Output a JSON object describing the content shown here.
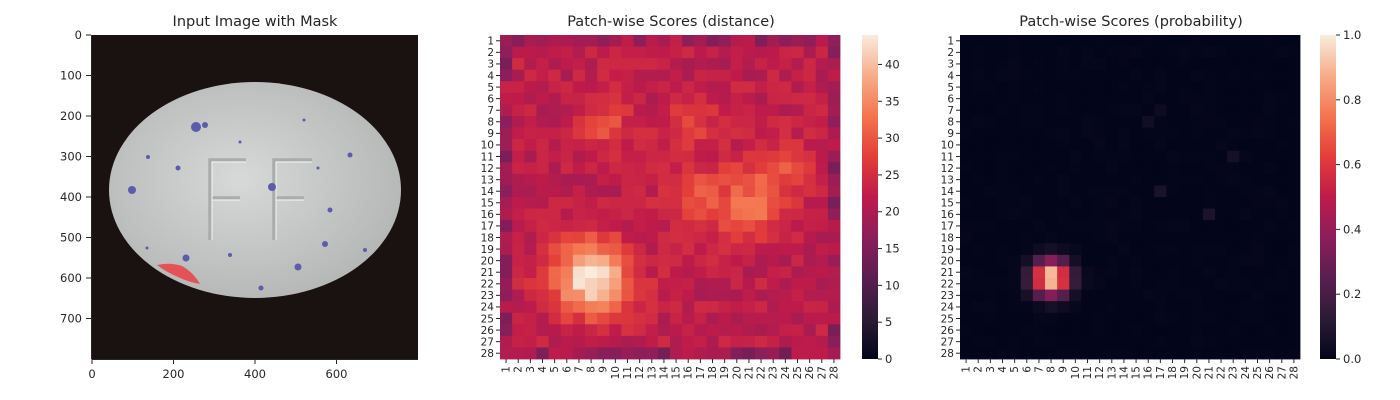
{
  "chart_data": [
    {
      "type": "image",
      "title": "Input Image with Mask",
      "xticks": [
        "0",
        "200",
        "400",
        "600"
      ],
      "yticks": [
        "0",
        "100",
        "200",
        "300",
        "400",
        "500",
        "600",
        "700"
      ],
      "xlim": [
        0,
        800
      ],
      "ylim": [
        0,
        800
      ],
      "objects": {
        "pill": {
          "center": [
            400,
            380
          ],
          "rx": 360,
          "ry": 268,
          "color": "#c9ccca"
        },
        "embossed_text": "FF",
        "mask_region": {
          "x_range": [
            160,
            270
          ],
          "y_range": [
            550,
            620
          ],
          "color": "#e8474b"
        }
      },
      "colors": {
        "background": "#1a1210",
        "pill": "#c9ccca",
        "mask": "#e8474b",
        "specks": "#5d5caa"
      }
    },
    {
      "type": "heatmap",
      "title": "Patch-wise Scores (distance)",
      "rows": 28,
      "cols": 28,
      "xticks": [
        "1",
        "2",
        "3",
        "4",
        "5",
        "6",
        "7",
        "8",
        "9",
        "10",
        "11",
        "12",
        "13",
        "14",
        "15",
        "16",
        "17",
        "18",
        "19",
        "20",
        "21",
        "22",
        "23",
        "24",
        "25",
        "26",
        "27",
        "28"
      ],
      "yticks": [
        "1",
        "2",
        "3",
        "4",
        "5",
        "6",
        "7",
        "8",
        "9",
        "10",
        "11",
        "12",
        "13",
        "14",
        "15",
        "16",
        "17",
        "18",
        "19",
        "20",
        "21",
        "22",
        "23",
        "24",
        "25",
        "26",
        "27",
        "28"
      ],
      "colorbar": {
        "ticks": [
          "0",
          "5",
          "10",
          "15",
          "20",
          "25",
          "30",
          "35",
          "40"
        ],
        "vmin": 0,
        "vmax": 44,
        "colormap": "rocket"
      },
      "base_value": 22,
      "hotspots": [
        {
          "row": 21.5,
          "col": 8,
          "peak": 44,
          "spread": 2.2
        },
        {
          "row": 14.5,
          "col": 17,
          "peak": 29,
          "spread": 2.0
        },
        {
          "row": 12.5,
          "col": 23,
          "peak": 30,
          "spread": 2.0
        },
        {
          "row": 16,
          "col": 21,
          "peak": 31,
          "spread": 1.6
        },
        {
          "row": 8,
          "col": 9,
          "peak": 29,
          "spread": 1.5
        },
        {
          "row": 8,
          "col": 16,
          "peak": 29,
          "spread": 1.4
        }
      ],
      "cold_edges": {
        "value": 16,
        "width": 1
      }
    },
    {
      "type": "heatmap",
      "title": "Patch-wise Scores (probability)",
      "rows": 28,
      "cols": 28,
      "xticks": [
        "1",
        "2",
        "3",
        "4",
        "5",
        "6",
        "7",
        "8",
        "9",
        "10",
        "11",
        "12",
        "13",
        "14",
        "15",
        "16",
        "17",
        "18",
        "19",
        "20",
        "21",
        "22",
        "23",
        "24",
        "25",
        "26",
        "27",
        "28"
      ],
      "yticks": [
        "1",
        "2",
        "3",
        "4",
        "5",
        "6",
        "7",
        "8",
        "9",
        "10",
        "11",
        "12",
        "13",
        "14",
        "15",
        "16",
        "17",
        "18",
        "19",
        "20",
        "21",
        "22",
        "23",
        "24",
        "25",
        "26",
        "27",
        "28"
      ],
      "colorbar": {
        "ticks": [
          "0.0",
          "0.2",
          "0.4",
          "0.6",
          "0.8",
          "1.0"
        ],
        "vmin": 0,
        "vmax": 1,
        "colormap": "rocket"
      },
      "base_value": 0.0,
      "hotspots": [
        {
          "row": 21.5,
          "col": 8,
          "peak": 1.0,
          "spread": 1.05
        }
      ],
      "faint_cells": [
        {
          "row": 14,
          "col": 17,
          "value": 0.06
        },
        {
          "row": 16,
          "col": 21,
          "value": 0.08
        },
        {
          "row": 11,
          "col": 23,
          "value": 0.06
        },
        {
          "row": 8,
          "col": 16,
          "value": 0.04
        },
        {
          "row": 7,
          "col": 17,
          "value": 0.04
        }
      ]
    }
  ]
}
